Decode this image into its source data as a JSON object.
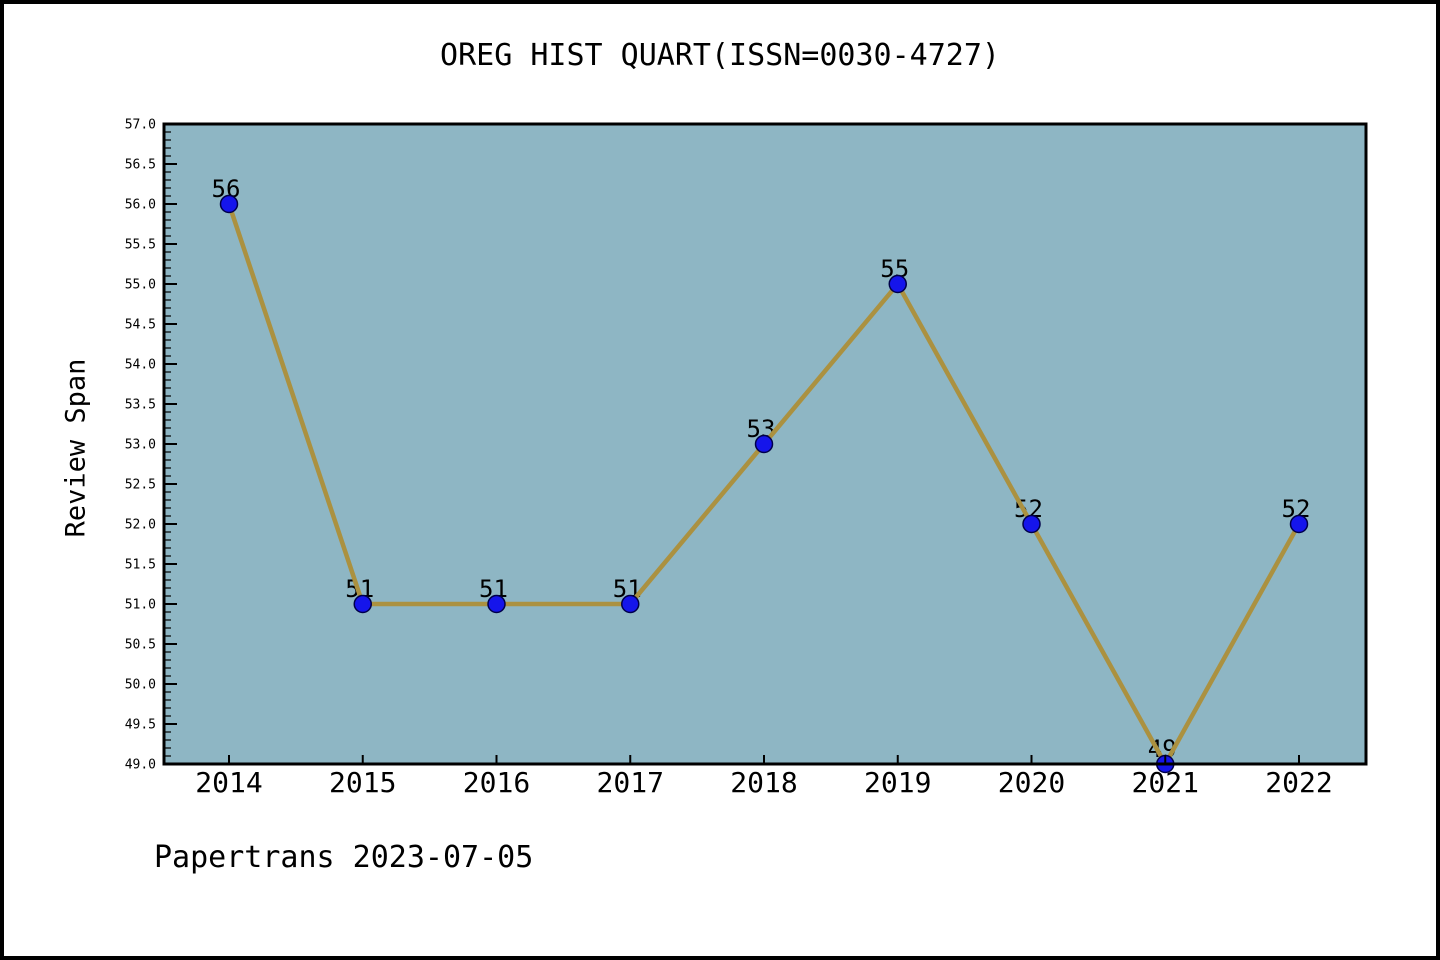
{
  "title": "OREG HIST QUART(ISSN=0030-4727)",
  "footer": "Papertrans 2023-07-05",
  "chart_data": {
    "type": "line",
    "title": "OREG HIST QUART(ISSN=0030-4727)",
    "xlabel": "",
    "ylabel": "Review Span",
    "categories": [
      "2014",
      "2015",
      "2016",
      "2017",
      "2018",
      "2019",
      "2020",
      "2021",
      "2022"
    ],
    "series": [
      {
        "name": "Review Span",
        "values": [
          56,
          51,
          51,
          51,
          53,
          55,
          52,
          49,
          52
        ]
      }
    ],
    "point_labels": [
      "56",
      "51",
      "51",
      "51",
      "53",
      "55",
      "52",
      "49",
      "52"
    ],
    "ylim": [
      49.0,
      57.0
    ],
    "ytick_step": 0.5,
    "y_minor_step": 0.1,
    "ytick_labels": [
      "49.0",
      "49.5",
      "50.0",
      "50.5",
      "51.0",
      "51.5",
      "52.0",
      "52.5",
      "53.0",
      "53.5",
      "54.0",
      "54.5",
      "55.0",
      "55.5",
      "56.0",
      "56.5",
      "57.0"
    ],
    "grid": false,
    "legend": "none",
    "colors": {
      "plot_bg": "#8EB6C4",
      "line": "#AB9140",
      "marker_fill": "#1515EB",
      "marker_edge": "#00004a",
      "axis": "#000000",
      "text": "#000000",
      "page_bg": "#ffffff",
      "frame_border": "#000000"
    }
  }
}
